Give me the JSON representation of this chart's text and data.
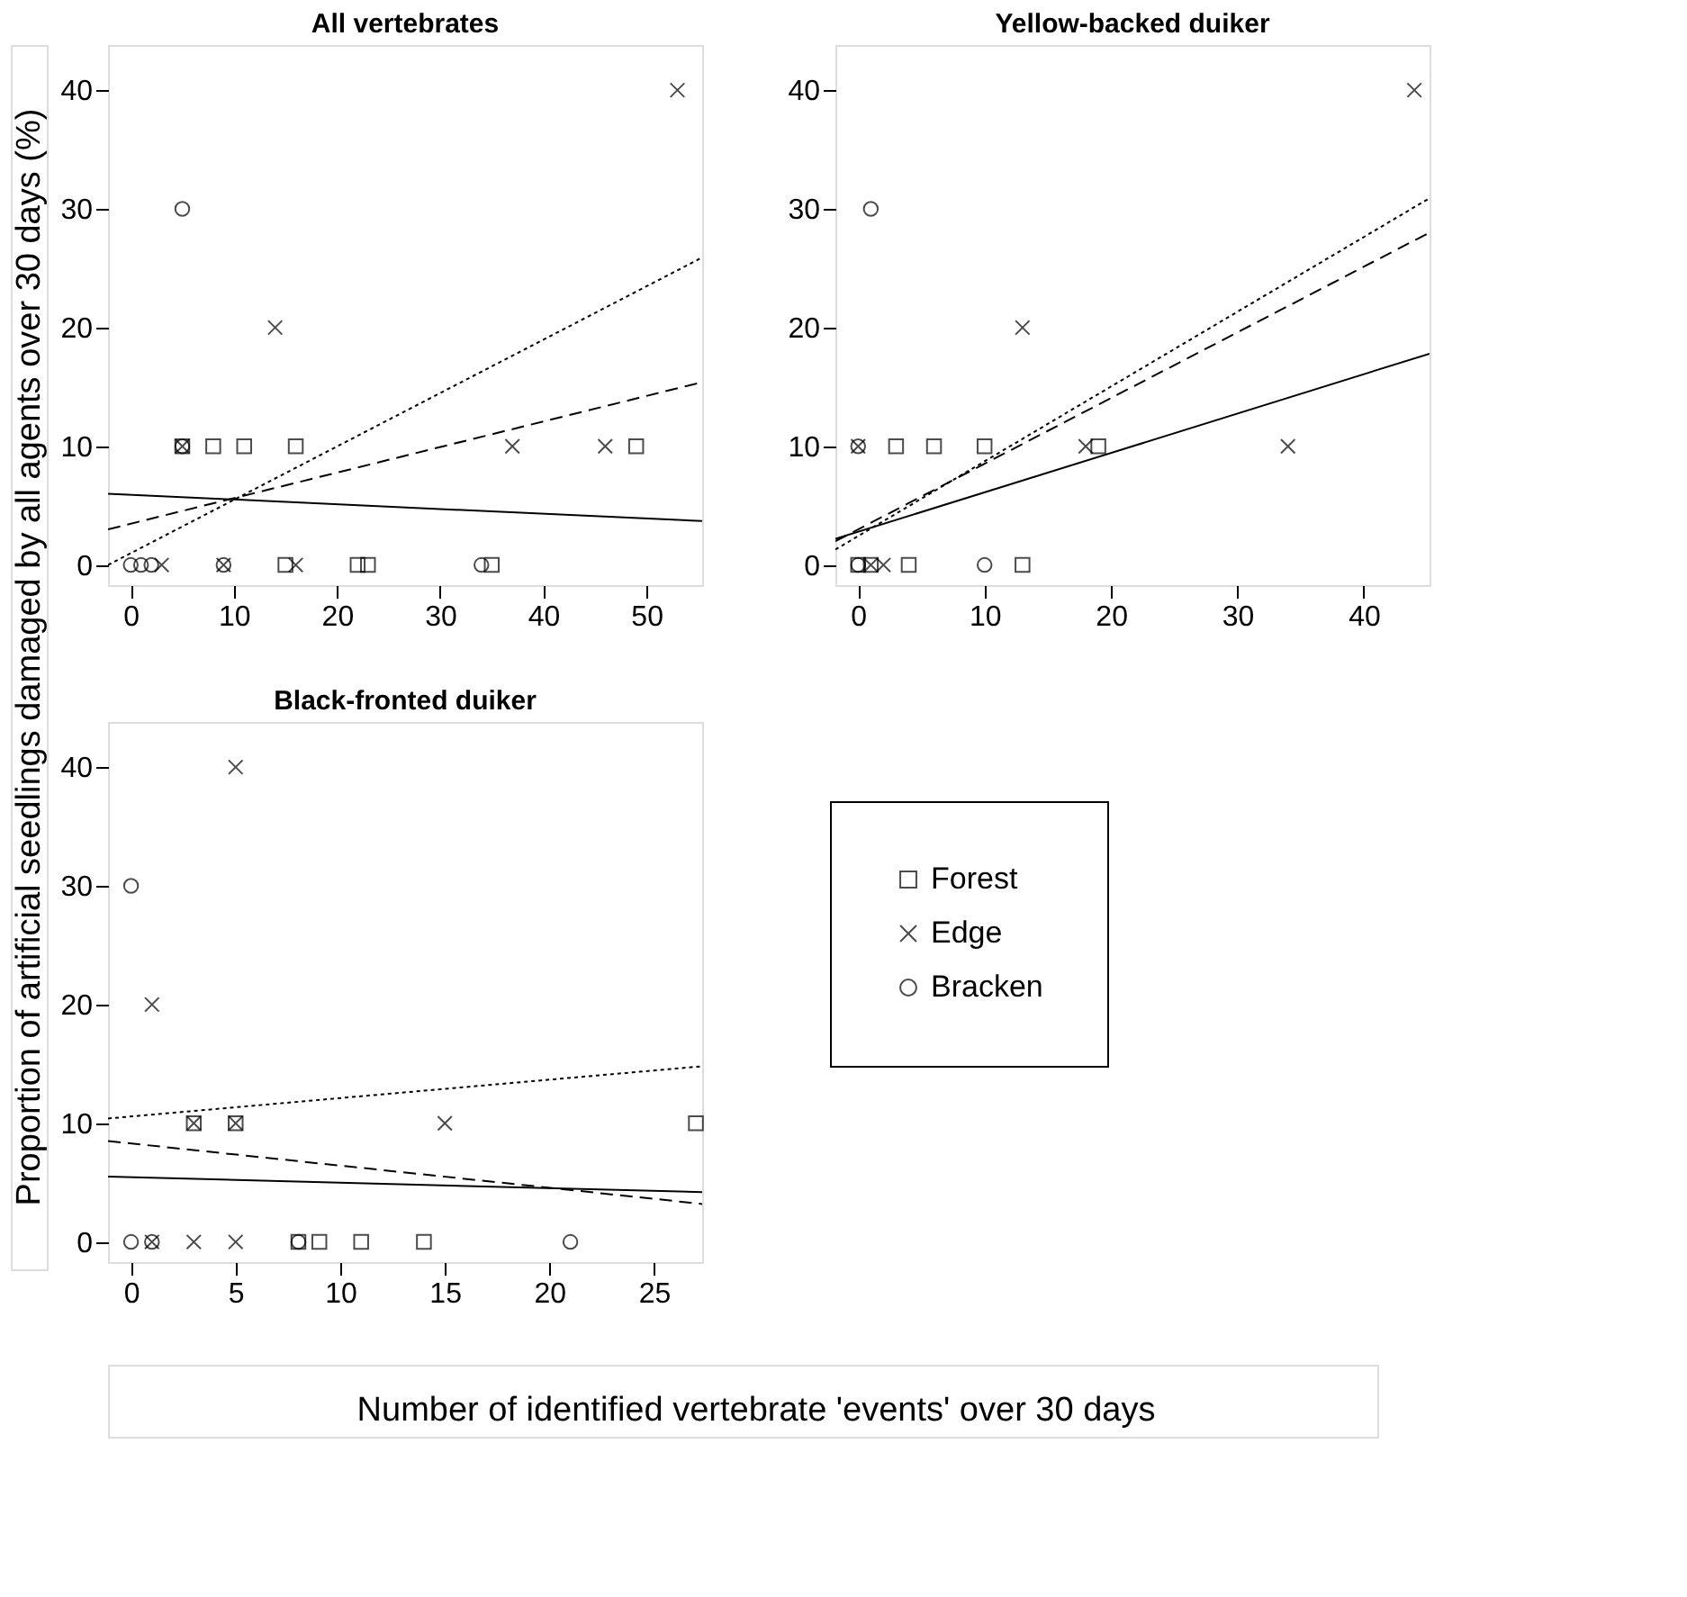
{
  "chart_data": [
    {
      "type": "scatter",
      "title": "All vertebrates",
      "xlabel": "Number of identified vertebrate 'events' over 30 days",
      "ylabel": "Proportion of artificial seedlings damaged by all agents over 30 days (%)",
      "xlim": [
        -2.2,
        55.4
      ],
      "ylim": [
        -1.7,
        43.8
      ],
      "xticks": [
        0,
        10,
        20,
        30,
        40,
        50
      ],
      "yticks": [
        0,
        10,
        20,
        30,
        40
      ],
      "grid": false,
      "legend": "bottom right",
      "series": [
        {
          "name": "Forest",
          "color": "#000000",
          "marker": "square",
          "x": [
            5,
            8,
            11,
            16,
            49,
            15,
            22,
            23,
            35
          ],
          "values": [
            10,
            10,
            10,
            10,
            10,
            0,
            0,
            0,
            0
          ]
        },
        {
          "name": "Edge",
          "color": "#000000",
          "marker": "cross",
          "x": [
            14,
            5,
            37,
            46,
            53,
            3,
            9,
            16
          ],
          "values": [
            20,
            10,
            10,
            10,
            40,
            0,
            0,
            0
          ]
        },
        {
          "name": "Bracken",
          "color": "#000000",
          "marker": "circle",
          "x": [
            5,
            5,
            0,
            1,
            2,
            9,
            34
          ],
          "values": [
            30,
            10,
            0,
            0,
            0,
            0,
            0
          ]
        },
        {
          "type": "line",
          "line_style": "solid",
          "color": "#000000",
          "x": [
            -2.2,
            55.4
          ],
          "values": [
            6.0,
            3.7
          ]
        },
        {
          "type": "line",
          "line_style": "dotted",
          "color": "#000000",
          "x": [
            -2.2,
            55.4
          ],
          "values": [
            0,
            25.9
          ]
        },
        {
          "type": "line",
          "line_style": "dashed",
          "color": "#000000",
          "x": [
            -2.2,
            55.4
          ],
          "values": [
            3.0,
            15.4
          ]
        }
      ]
    },
    {
      "type": "scatter",
      "title": "Yellow-backed duiker",
      "xlim": [
        -1.8,
        45.2
      ],
      "ylim": [
        -1.7,
        43.8
      ],
      "xticks": [
        0,
        10,
        20,
        30,
        40
      ],
      "yticks": [
        0,
        10,
        20,
        30,
        40
      ],
      "grid": false,
      "legend": false,
      "series": [
        {
          "name": "Forest",
          "color": "#000000",
          "marker": "square",
          "x": [
            3,
            6,
            10,
            19,
            0,
            1,
            4,
            13
          ],
          "values": [
            10,
            10,
            10,
            10,
            0,
            0,
            0,
            0
          ]
        },
        {
          "name": "Edge",
          "color": "#000000",
          "marker": "cross",
          "x": [
            13,
            0,
            18,
            34,
            44,
            1,
            2
          ],
          "values": [
            20,
            10,
            10,
            10,
            40,
            0,
            0
          ]
        },
        {
          "name": "Bracken",
          "color": "#000000",
          "marker": "circle",
          "x": [
            1,
            0,
            0,
            10
          ],
          "values": [
            30,
            10,
            0,
            0
          ]
        },
        {
          "type": "line",
          "line_style": "solid",
          "color": "#000000",
          "x": [
            -1.8,
            45.2
          ],
          "values": [
            2.2,
            17.8
          ]
        },
        {
          "type": "line",
          "line_style": "dotted",
          "color": "#000000",
          "x": [
            -1.8,
            45.2
          ],
          "values": [
            1.3,
            30.9
          ]
        },
        {
          "type": "line",
          "line_style": "dashed",
          "color": "#000000",
          "x": [
            -1.8,
            45.2
          ],
          "values": [
            2.0,
            28.0
          ]
        }
      ]
    },
    {
      "type": "scatter",
      "title": "Black-fronted duiker",
      "xlim": [
        -1.1,
        27.3
      ],
      "ylim": [
        -1.7,
        43.8
      ],
      "xticks": [
        0,
        5,
        10,
        15,
        20,
        25
      ],
      "yticks": [
        0,
        10,
        20,
        30,
        40
      ],
      "grid": false,
      "series": [
        {
          "name": "Forest",
          "color": "#000000",
          "marker": "square",
          "x": [
            3,
            5,
            27,
            8,
            9,
            11,
            14
          ],
          "values": [
            10,
            10,
            10,
            0,
            0,
            0,
            0
          ]
        },
        {
          "name": "Edge",
          "color": "#000000",
          "marker": "cross",
          "x": [
            5,
            1,
            3,
            5,
            15,
            1,
            3,
            5
          ],
          "values": [
            40,
            20,
            10,
            10,
            10,
            0,
            0,
            0
          ]
        },
        {
          "name": "Bracken",
          "color": "#000000",
          "marker": "circle",
          "x": [
            0,
            0,
            1,
            8,
            21
          ],
          "values": [
            30,
            0,
            0,
            0,
            0
          ]
        },
        {
          "type": "line",
          "line_style": "solid",
          "color": "#000000",
          "x": [
            -1.1,
            27.3
          ],
          "values": [
            5.5,
            4.2
          ]
        },
        {
          "type": "line",
          "line_style": "dotted",
          "color": "#000000",
          "x": [
            -1.1,
            27.3
          ],
          "values": [
            10.4,
            14.8
          ]
        },
        {
          "type": "line",
          "line_style": "dashed",
          "color": "#000000",
          "x": [
            -1.1,
            27.3
          ],
          "values": [
            8.5,
            3.2
          ]
        }
      ]
    }
  ]
}
